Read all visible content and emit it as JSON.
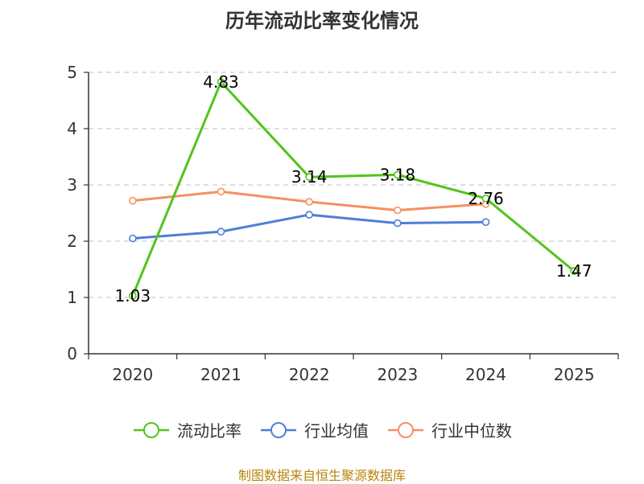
{
  "chart_data": {
    "type": "line",
    "title": "历年流动比率变化情况",
    "categories": [
      "2020",
      "2021",
      "2022",
      "2023",
      "2024",
      "2025"
    ],
    "ylim": [
      0,
      5
    ],
    "yticks": [
      0,
      1,
      2,
      3,
      4,
      5
    ],
    "grid": true,
    "legend_position": "bottom",
    "series": [
      {
        "name": "流动比率",
        "color": "#52c41a",
        "values": [
          1.03,
          4.83,
          3.14,
          3.18,
          2.76,
          1.47
        ],
        "labels": [
          "1.03",
          "4.83",
          "3.14",
          "3.18",
          "2.76",
          "1.47"
        ]
      },
      {
        "name": "行业均值",
        "color": "#4e7fd6",
        "values": [
          2.05,
          2.17,
          2.47,
          2.32,
          2.34,
          null
        ]
      },
      {
        "name": "行业中位数",
        "color": "#f59062",
        "values": [
          2.72,
          2.88,
          2.7,
          2.55,
          2.66,
          null
        ]
      }
    ]
  },
  "source": "制图数据来自恒生聚源数据库"
}
